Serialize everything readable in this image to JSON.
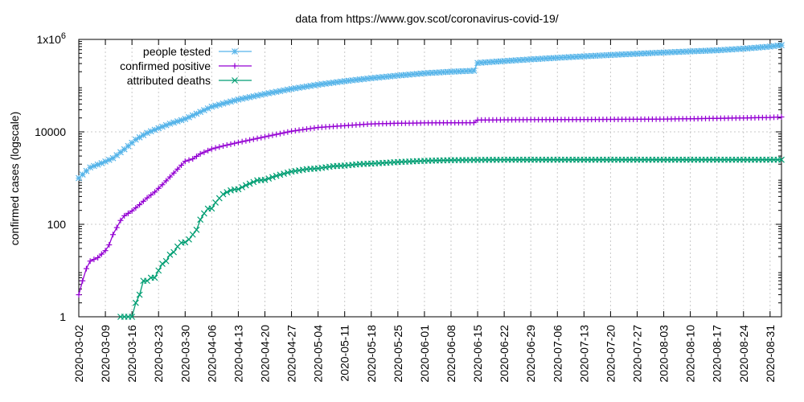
{
  "chart_data": {
    "type": "line",
    "title": "data from https://www.gov.scot/coronavirus-covid-19/",
    "ylabel": "confirmed cases (logscale)",
    "xlabel": "",
    "y_scale": "log",
    "ylim": [
      1,
      1000000
    ],
    "y_ticks": [
      {
        "value": 1,
        "label": "1"
      },
      {
        "value": 100,
        "label": "100"
      },
      {
        "value": 10000,
        "label": "10000"
      },
      {
        "value": 1000000,
        "label": "1x10",
        "sup": "6"
      }
    ],
    "xlim": [
      "2020-03-02",
      "2020-09-03"
    ],
    "x_ticks": [
      "2020-03-02",
      "2020-03-09",
      "2020-03-16",
      "2020-03-23",
      "2020-03-30",
      "2020-04-06",
      "2020-04-13",
      "2020-04-20",
      "2020-04-27",
      "2020-05-04",
      "2020-05-11",
      "2020-05-18",
      "2020-05-25",
      "2020-06-01",
      "2020-06-08",
      "2020-06-15",
      "2020-06-22",
      "2020-06-29",
      "2020-07-06",
      "2020-07-13",
      "2020-07-20",
      "2020-07-27",
      "2020-08-03",
      "2020-08-10",
      "2020-08-17",
      "2020-08-24",
      "2020-08-31"
    ],
    "grid": true,
    "legend_position": "top-left",
    "series": [
      {
        "name": "people tested",
        "color": "#56b4e9",
        "marker": "asterisk",
        "points": [
          [
            "2020-03-02",
            1000
          ],
          [
            "2020-03-05",
            1700
          ],
          [
            "2020-03-08",
            2100
          ],
          [
            "2020-03-11",
            2700
          ],
          [
            "2020-03-14",
            4200
          ],
          [
            "2020-03-17",
            6800
          ],
          [
            "2020-03-20",
            9500
          ],
          [
            "2020-03-23",
            12000
          ],
          [
            "2020-03-26",
            15000
          ],
          [
            "2020-03-30",
            19000
          ],
          [
            "2020-04-03",
            27000
          ],
          [
            "2020-04-06",
            35000
          ],
          [
            "2020-04-10",
            43000
          ],
          [
            "2020-04-13",
            50000
          ],
          [
            "2020-04-20",
            66000
          ],
          [
            "2020-04-27",
            85000
          ],
          [
            "2020-05-04",
            105000
          ],
          [
            "2020-05-11",
            125000
          ],
          [
            "2020-05-18",
            145000
          ],
          [
            "2020-05-25",
            165000
          ],
          [
            "2020-06-01",
            185000
          ],
          [
            "2020-06-08",
            200000
          ],
          [
            "2020-06-14",
            210000
          ],
          [
            "2020-06-15",
            310000
          ],
          [
            "2020-06-22",
            340000
          ],
          [
            "2020-06-29",
            370000
          ],
          [
            "2020-07-06",
            400000
          ],
          [
            "2020-07-13",
            430000
          ],
          [
            "2020-07-20",
            460000
          ],
          [
            "2020-07-27",
            490000
          ],
          [
            "2020-08-03",
            520000
          ],
          [
            "2020-08-10",
            550000
          ],
          [
            "2020-08-17",
            580000
          ],
          [
            "2020-08-24",
            630000
          ],
          [
            "2020-08-31",
            700000
          ],
          [
            "2020-09-03",
            750000
          ]
        ]
      },
      {
        "name": "confirmed positive",
        "color": "#9400d3",
        "marker": "plus",
        "points": [
          [
            "2020-03-02",
            3
          ],
          [
            "2020-03-03",
            6
          ],
          [
            "2020-03-04",
            11
          ],
          [
            "2020-03-05",
            16
          ],
          [
            "2020-03-07",
            19
          ],
          [
            "2020-03-09",
            27
          ],
          [
            "2020-03-10",
            36
          ],
          [
            "2020-03-11",
            60
          ],
          [
            "2020-03-12",
            85
          ],
          [
            "2020-03-13",
            121
          ],
          [
            "2020-03-14",
            153
          ],
          [
            "2020-03-16",
            195
          ],
          [
            "2020-03-18",
            266
          ],
          [
            "2020-03-20",
            373
          ],
          [
            "2020-03-22",
            499
          ],
          [
            "2020-03-24,",
            719
          ],
          [
            "2020-03-26",
            1059
          ],
          [
            "2020-03-28",
            1563
          ],
          [
            "2020-03-30",
            2310
          ],
          [
            "2020-04-01",
            2602
          ],
          [
            "2020-04-03",
            3345
          ],
          [
            "2020-04-06",
            4270
          ],
          [
            "2020-04-09",
            4957
          ],
          [
            "2020-04-13",
            5903
          ],
          [
            "2020-04-20",
            7820
          ],
          [
            "2020-04-27",
            10324
          ],
          [
            "2020-05-04",
            12437
          ],
          [
            "2020-05-11",
            13627
          ],
          [
            "2020-05-18",
            14856
          ],
          [
            "2020-05-25",
            15324
          ],
          [
            "2020-06-01",
            15582
          ],
          [
            "2020-06-08",
            15735
          ],
          [
            "2020-06-14",
            15800
          ],
          [
            "2020-06-15",
            18000
          ],
          [
            "2020-06-22",
            18200
          ],
          [
            "2020-06-29",
            18300
          ],
          [
            "2020-07-06",
            18400
          ],
          [
            "2020-07-13",
            18500
          ],
          [
            "2020-07-20",
            18600
          ],
          [
            "2020-07-27",
            18700
          ],
          [
            "2020-08-03",
            18900
          ],
          [
            "2020-08-10",
            19200
          ],
          [
            "2020-08-17",
            19600
          ],
          [
            "2020-08-24",
            20000
          ],
          [
            "2020-08-31",
            20500
          ],
          [
            "2020-09-03",
            21000
          ]
        ]
      },
      {
        "name": "attributed deaths",
        "color": "#009e73",
        "marker": "cross",
        "points": [
          [
            "2020-03-13",
            1
          ],
          [
            "2020-03-14",
            1
          ],
          [
            "2020-03-15",
            1
          ],
          [
            "2020-03-16",
            1
          ],
          [
            "2020-03-17",
            2
          ],
          [
            "2020-03-18",
            3
          ],
          [
            "2020-03-19",
            6
          ],
          [
            "2020-03-20",
            6
          ],
          [
            "2020-03-21",
            7
          ],
          [
            "2020-03-22",
            7
          ],
          [
            "2020-03-23",
            10
          ],
          [
            "2020-03-24",
            14
          ],
          [
            "2020-03-25",
            16
          ],
          [
            "2020-03-26",
            22
          ],
          [
            "2020-03-27",
            25
          ],
          [
            "2020-03-28",
            33
          ],
          [
            "2020-03-29",
            40
          ],
          [
            "2020-03-30",
            41
          ],
          [
            "2020-03-31",
            47
          ],
          [
            "2020-04-01",
            60
          ],
          [
            "2020-04-02",
            76
          ],
          [
            "2020-04-03",
            126
          ],
          [
            "2020-04-04",
            172
          ],
          [
            "2020-04-05",
            218
          ],
          [
            "2020-04-06",
            220
          ],
          [
            "2020-04-07",
            296
          ],
          [
            "2020-04-08",
            366
          ],
          [
            "2020-04-09",
            447
          ],
          [
            "2020-04-10",
            495
          ],
          [
            "2020-04-11",
            542
          ],
          [
            "2020-04-12",
            566
          ],
          [
            "2020-04-13",
            575
          ],
          [
            "2020-04-15",
            699
          ],
          [
            "2020-04-18",
            893
          ],
          [
            "2020-04-20",
            915
          ],
          [
            "2020-04-23",
            1120
          ],
          [
            "2020-04-27",
            1384
          ],
          [
            "2020-05-01",
            1559
          ],
          [
            "2020-05-04",
            1620
          ],
          [
            "2020-05-08",
            1811
          ],
          [
            "2020-05-11",
            1862
          ],
          [
            "2020-05-15",
            2007
          ],
          [
            "2020-05-18",
            2053
          ],
          [
            "2020-05-25",
            2221
          ],
          [
            "2020-06-01",
            2362
          ],
          [
            "2020-06-08",
            2439
          ],
          [
            "2020-06-14",
            2468
          ],
          [
            "2020-06-15",
            2472
          ],
          [
            "2020-06-22",
            2488
          ],
          [
            "2020-06-29",
            2491
          ],
          [
            "2020-07-06",
            2491
          ],
          [
            "2020-07-13",
            2491
          ],
          [
            "2020-07-20",
            2491
          ],
          [
            "2020-07-27",
            2491
          ],
          [
            "2020-08-03",
            2491
          ],
          [
            "2020-08-10",
            2491
          ],
          [
            "2020-08-17",
            2492
          ],
          [
            "2020-08-24",
            2494
          ],
          [
            "2020-08-31",
            2494
          ],
          [
            "2020-09-03",
            2494
          ]
        ]
      }
    ]
  }
}
